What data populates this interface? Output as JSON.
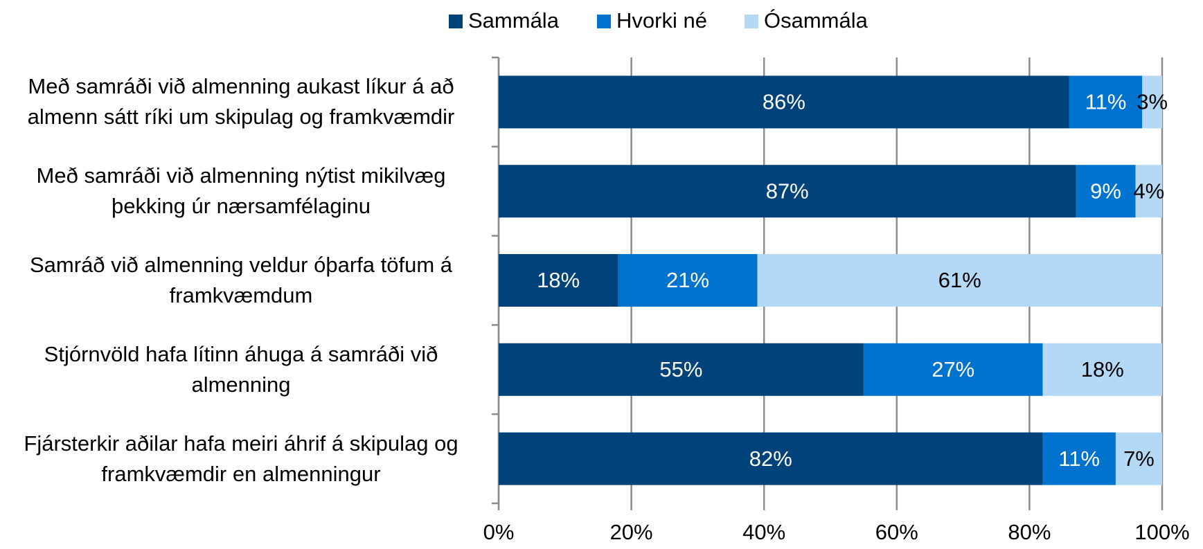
{
  "chart_data": {
    "type": "stacked_barh",
    "categories": [
      "Með samráði við almenning aukast líkur á að almenn sátt ríki um skipulag og framkvæmdir",
      "Með samráði við almenning nýtist mikilvæg þekking úr nærsamfélaginu",
      "Samráð við almenning veldur óþarfa töfum á framkvæmdum",
      "Stjórnvöld hafa lítinn áhuga á samráði við almenning",
      "Fjársterkir aðilar hafa meiri áhrif á skipulag og framkvæmdir en almenningur"
    ],
    "series": [
      {
        "name": "Sammála",
        "color": "#00427a",
        "label_color": "#ffffff",
        "values": [
          86,
          87,
          18,
          55,
          82
        ],
        "value_labels": [
          "86%",
          "87%",
          "18%",
          "55%",
          "82%"
        ]
      },
      {
        "name": "Hvorki né",
        "color": "#0073cf",
        "label_color": "#ffffff",
        "values": [
          11,
          9,
          21,
          27,
          11
        ],
        "value_labels": [
          "11%",
          "9%",
          "21%",
          "27%",
          "11%"
        ]
      },
      {
        "name": "Ósammála",
        "color": "#b3d9f7",
        "label_color": "#000000",
        "values": [
          3,
          4,
          61,
          18,
          7
        ],
        "value_labels": [
          "3%",
          "4%",
          "61%",
          "18%",
          "7%"
        ]
      }
    ],
    "xlim": [
      0,
      100
    ],
    "xticks": [
      {
        "value": 0,
        "label": "0%"
      },
      {
        "value": 20,
        "label": "20%"
      },
      {
        "value": 40,
        "label": "40%"
      },
      {
        "value": 60,
        "label": "60%"
      },
      {
        "value": 80,
        "label": "80%"
      },
      {
        "value": 100,
        "label": "100%"
      }
    ],
    "grid": true,
    "legend": "top"
  }
}
